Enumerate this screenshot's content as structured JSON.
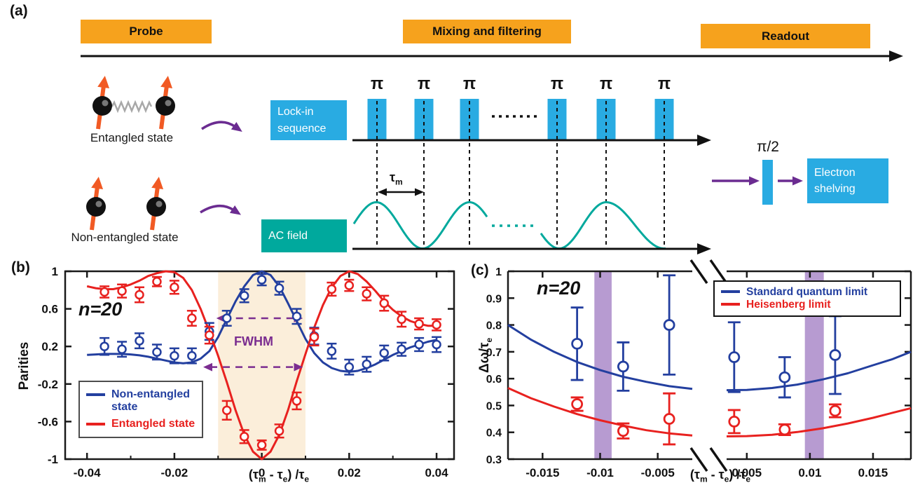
{
  "colors": {
    "orange_box": "#F6A21D",
    "blue_box": "#29ABE2",
    "teal": "#00A99D",
    "purple_arrow": "#6B2C91",
    "fwhm_purple": "#7B2D90",
    "chart_blue": "#233F9F",
    "chart_red": "#E8211F",
    "shade_cream": "#FBEEDA",
    "band_purple": "#B79BD1",
    "spin_orange": "#F15A24",
    "spring_gray": "#A8A8A8",
    "axis_black": "#1A1A1A"
  },
  "panel_a": {
    "label": "(a)",
    "stages": [
      {
        "label": "Probe"
      },
      {
        "label": "Mixing and filtering"
      },
      {
        "label": "Readout"
      }
    ],
    "entangled_label": "Entangled state",
    "non_entangled_label": "Non-entangled state",
    "lockin_label": "Lock-in\nsequence",
    "ac_label": "AC field",
    "pi_label": "π",
    "tau_m_label": "τ_m_",
    "pi_half_label": "π/2",
    "shelving_label": "Electron\nshelving"
  },
  "chart_data": [
    {
      "panel": "(b)",
      "type": "line+scatter",
      "annotation": "n=20",
      "xlabel": "(τ_m_ - τ_e_) /τ_e_",
      "ylabel": "Parities",
      "xlim": [
        -0.045,
        0.044
      ],
      "ylim": [
        -1,
        1
      ],
      "xticks": [
        {
          "v": -0.04,
          "l": "-0.04"
        },
        {
          "v": -0.02,
          "l": "-0.02"
        },
        {
          "v": 0,
          "l": "0"
        },
        {
          "v": 0.02,
          "l": "0.02"
        },
        {
          "v": 0.04,
          "l": "0.04"
        }
      ],
      "xminor": [
        -0.03,
        -0.01,
        0.01,
        0.03
      ],
      "yticks": [
        {
          "v": 1,
          "l": "1"
        },
        {
          "v": 0.6,
          "l": "0.6"
        },
        {
          "v": 0.2,
          "l": "0.2"
        },
        {
          "v": -0.2,
          "l": "-0.2"
        },
        {
          "v": -0.6,
          "l": "-0.6"
        },
        {
          "v": -1,
          "l": "-1"
        }
      ],
      "shade": {
        "x0": -0.01,
        "x1": 0.01
      },
      "fwhm": {
        "label": "FWHM",
        "upper": {
          "y": 0.5,
          "x0": -0.0088,
          "x1": 0.0078
        },
        "lower": {
          "y": -0.02,
          "x0": -0.0118,
          "x1": 0.0078
        }
      },
      "legend_position": "lower-left",
      "series": [
        {
          "name": "Non-entangled state",
          "color_key": "chart_blue",
          "curve": [
            [
              -0.04,
              0.11
            ],
            [
              -0.038,
              0.115
            ],
            [
              -0.036,
              0.12
            ],
            [
              -0.034,
              0.12
            ],
            [
              -0.032,
              0.12
            ],
            [
              -0.03,
              0.115
            ],
            [
              -0.028,
              0.105
            ],
            [
              -0.026,
              0.09
            ],
            [
              -0.024,
              0.07
            ],
            [
              -0.022,
              0.05
            ],
            [
              -0.02,
              0.03
            ],
            [
              -0.018,
              0.02
            ],
            [
              -0.016,
              0.03
            ],
            [
              -0.014,
              0.07
            ],
            [
              -0.012,
              0.15
            ],
            [
              -0.01,
              0.3
            ],
            [
              -0.008,
              0.49
            ],
            [
              -0.006,
              0.68
            ],
            [
              -0.004,
              0.84
            ],
            [
              -0.002,
              0.96
            ],
            [
              0,
              1.0
            ],
            [
              0.002,
              0.96
            ],
            [
              0.004,
              0.84
            ],
            [
              0.006,
              0.66
            ],
            [
              0.008,
              0.47
            ],
            [
              0.01,
              0.28
            ],
            [
              0.012,
              0.13
            ],
            [
              0.014,
              0.03
            ],
            [
              0.016,
              -0.03
            ],
            [
              0.018,
              -0.06
            ],
            [
              0.02,
              -0.07
            ],
            [
              0.022,
              -0.06
            ],
            [
              0.024,
              -0.03
            ],
            [
              0.026,
              0.01
            ],
            [
              0.028,
              0.06
            ],
            [
              0.03,
              0.11
            ],
            [
              0.032,
              0.15
            ],
            [
              0.034,
              0.19
            ],
            [
              0.036,
              0.22
            ],
            [
              0.038,
              0.25
            ],
            [
              0.04,
              0.27
            ]
          ],
          "points": [
            [
              -0.036,
              0.2,
              0.09
            ],
            [
              -0.032,
              0.17,
              0.08
            ],
            [
              -0.028,
              0.26,
              0.08
            ],
            [
              -0.024,
              0.14,
              0.08
            ],
            [
              -0.02,
              0.1,
              0.08
            ],
            [
              -0.016,
              0.1,
              0.08
            ],
            [
              -0.012,
              0.36,
              0.09
            ],
            [
              -0.008,
              0.5,
              0.08
            ],
            [
              -0.004,
              0.74,
              0.07
            ],
            [
              0,
              0.91,
              0.06
            ],
            [
              0.004,
              0.82,
              0.07
            ],
            [
              0.008,
              0.52,
              0.08
            ],
            [
              0.012,
              0.31,
              0.09
            ],
            [
              0.016,
              0.15,
              0.08
            ],
            [
              0.02,
              -0.02,
              0.08
            ],
            [
              0.024,
              0.01,
              0.08
            ],
            [
              0.028,
              0.13,
              0.08
            ],
            [
              0.032,
              0.17,
              0.07
            ],
            [
              0.036,
              0.22,
              0.07
            ],
            [
              0.04,
              0.22,
              0.08
            ]
          ]
        },
        {
          "name": "Entangled state",
          "color_key": "chart_red",
          "curve": [
            [
              -0.04,
              0.84
            ],
            [
              -0.038,
              0.82
            ],
            [
              -0.036,
              0.81
            ],
            [
              -0.034,
              0.81
            ],
            [
              -0.032,
              0.83
            ],
            [
              -0.03,
              0.86
            ],
            [
              -0.028,
              0.9
            ],
            [
              -0.026,
              0.95
            ],
            [
              -0.024,
              0.98
            ],
            [
              -0.022,
              1.0
            ],
            [
              -0.02,
              0.99
            ],
            [
              -0.018,
              0.93
            ],
            [
              -0.016,
              0.8
            ],
            [
              -0.014,
              0.6
            ],
            [
              -0.012,
              0.36
            ],
            [
              -0.01,
              0.1
            ],
            [
              -0.008,
              -0.18
            ],
            [
              -0.006,
              -0.48
            ],
            [
              -0.004,
              -0.74
            ],
            [
              -0.002,
              -0.92
            ],
            [
              0,
              -1.0
            ],
            [
              0.002,
              -0.92
            ],
            [
              0.004,
              -0.74
            ],
            [
              0.006,
              -0.48
            ],
            [
              0.008,
              -0.17
            ],
            [
              0.01,
              0.12
            ],
            [
              0.012,
              0.4
            ],
            [
              0.014,
              0.64
            ],
            [
              0.016,
              0.83
            ],
            [
              0.018,
              0.95
            ],
            [
              0.02,
              1.0
            ],
            [
              0.022,
              0.97
            ],
            [
              0.024,
              0.89
            ],
            [
              0.026,
              0.79
            ],
            [
              0.028,
              0.68
            ],
            [
              0.03,
              0.59
            ],
            [
              0.032,
              0.52
            ],
            [
              0.034,
              0.47
            ],
            [
              0.036,
              0.44
            ],
            [
              0.038,
              0.42
            ],
            [
              0.04,
              0.42
            ]
          ],
          "points": [
            [
              -0.036,
              0.78,
              0.06
            ],
            [
              -0.032,
              0.79,
              0.07
            ],
            [
              -0.028,
              0.75,
              0.08
            ],
            [
              -0.024,
              0.89,
              0.05
            ],
            [
              -0.02,
              0.83,
              0.07
            ],
            [
              -0.016,
              0.5,
              0.08
            ],
            [
              -0.012,
              0.32,
              0.09
            ],
            [
              -0.008,
              -0.48,
              0.1
            ],
            [
              -0.004,
              -0.76,
              0.07
            ],
            [
              0,
              -0.85,
              0.05
            ],
            [
              0.004,
              -0.7,
              0.07
            ],
            [
              0.008,
              -0.38,
              0.09
            ],
            [
              0.012,
              0.3,
              0.09
            ],
            [
              0.016,
              0.81,
              0.07
            ],
            [
              0.02,
              0.85,
              0.06
            ],
            [
              0.024,
              0.76,
              0.07
            ],
            [
              0.028,
              0.66,
              0.08
            ],
            [
              0.032,
              0.49,
              0.08
            ],
            [
              0.036,
              0.44,
              0.06
            ],
            [
              0.04,
              0.43,
              0.06
            ]
          ]
        }
      ]
    },
    {
      "panel": "(c)",
      "type": "line+scatter-broken-axis",
      "annotation": "n=20",
      "xlabel": "(τ_m_ - τ_e_) /τ_e_",
      "ylabel": "Δω/τ_e_",
      "ylim": [
        0.3,
        1.0
      ],
      "yticks": [
        {
          "v": 0.3,
          "l": "0.3"
        },
        {
          "v": 0.4,
          "l": "0.4"
        },
        {
          "v": 0.5,
          "l": "0.5"
        },
        {
          "v": 0.6,
          "l": "0.6"
        },
        {
          "v": 0.7,
          "l": "0.7"
        },
        {
          "v": 0.8,
          "l": "0.8"
        },
        {
          "v": 0.9,
          "l": "0.9"
        },
        {
          "v": 1,
          "l": "1"
        }
      ],
      "segments": [
        {
          "xlim": [
            -0.018,
            -0.002
          ],
          "xticks": [
            {
              "v": -0.015,
              "l": "-0.015"
            },
            {
              "v": -0.01,
              "l": "-0.01"
            },
            {
              "v": -0.005,
              "l": "-0.005"
            }
          ]
        },
        {
          "xlim": [
            0.0034,
            0.018
          ],
          "xticks": [
            {
              "v": 0.005,
              "l": "0.005"
            },
            {
              "v": 0.01,
              "l": "0.01"
            },
            {
              "v": 0.015,
              "l": "0.015"
            }
          ]
        }
      ],
      "bands": [
        {
          "x0": -0.0105,
          "x1": -0.009
        },
        {
          "x0": 0.0096,
          "x1": 0.0111
        }
      ],
      "legend_position": "upper-right",
      "series": [
        {
          "name": "Standard quantum limit",
          "color_key": "chart_blue",
          "curveL": [
            [
              -0.018,
              0.8
            ],
            [
              -0.016,
              0.745
            ],
            [
              -0.014,
              0.7
            ],
            [
              -0.012,
              0.662
            ],
            [
              -0.01,
              0.632
            ],
            [
              -0.008,
              0.607
            ],
            [
              -0.006,
              0.588
            ],
            [
              -0.004,
              0.572
            ],
            [
              -0.002,
              0.562
            ]
          ],
          "curveR": [
            [
              0.0034,
              0.557
            ],
            [
              0.005,
              0.558
            ],
            [
              0.007,
              0.565
            ],
            [
              0.009,
              0.578
            ],
            [
              0.011,
              0.597
            ],
            [
              0.013,
              0.62
            ],
            [
              0.015,
              0.65
            ],
            [
              0.0165,
              0.672
            ],
            [
              0.018,
              0.7
            ]
          ],
          "points": [
            [
              -0.012,
              0.73,
              0.135
            ],
            [
              -0.008,
              0.645,
              0.09
            ],
            [
              -0.004,
              0.8,
              0.185
            ],
            [
              0.004,
              0.68,
              0.13
            ],
            [
              0.008,
              0.605,
              0.075
            ],
            [
              0.012,
              0.688,
              0.145
            ]
          ]
        },
        {
          "name": "Heisenberg limit",
          "color_key": "chart_red",
          "curveL": [
            [
              -0.018,
              0.565
            ],
            [
              -0.016,
              0.527
            ],
            [
              -0.014,
              0.496
            ],
            [
              -0.012,
              0.468
            ],
            [
              -0.01,
              0.445
            ],
            [
              -0.008,
              0.425
            ],
            [
              -0.006,
              0.408
            ],
            [
              -0.004,
              0.396
            ],
            [
              -0.002,
              0.388
            ]
          ],
          "curveR": [
            [
              0.0034,
              0.385
            ],
            [
              0.005,
              0.386
            ],
            [
              0.007,
              0.391
            ],
            [
              0.009,
              0.401
            ],
            [
              0.011,
              0.415
            ],
            [
              0.013,
              0.433
            ],
            [
              0.015,
              0.454
            ],
            [
              0.0165,
              0.472
            ],
            [
              0.018,
              0.49
            ]
          ],
          "points": [
            [
              -0.012,
              0.505,
              0.025
            ],
            [
              -0.008,
              0.405,
              0.028
            ],
            [
              -0.004,
              0.45,
              0.095
            ],
            [
              0.004,
              0.44,
              0.043
            ],
            [
              0.008,
              0.41,
              0.02
            ],
            [
              0.012,
              0.48,
              0.024
            ]
          ]
        }
      ]
    }
  ]
}
